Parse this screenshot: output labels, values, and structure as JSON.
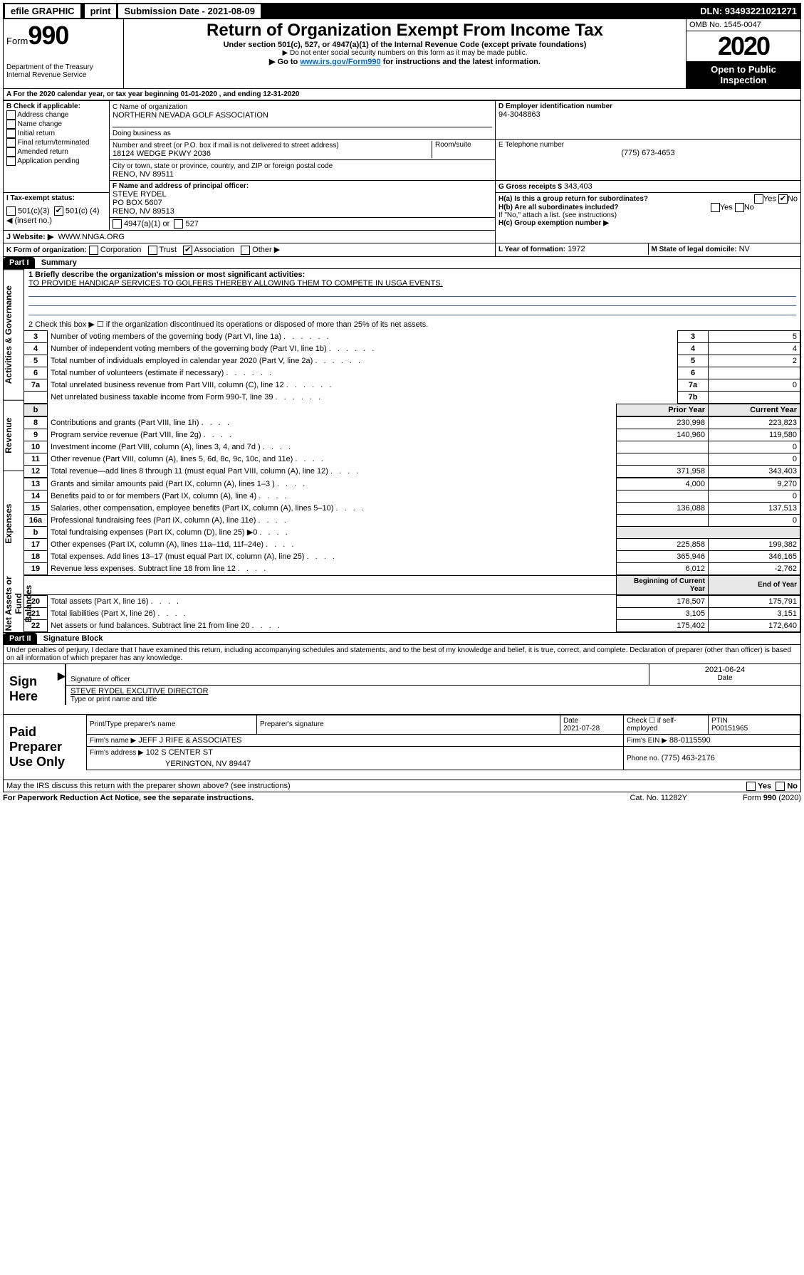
{
  "topbar": {
    "efile": "efile GRAPHIC",
    "print": "print",
    "sub_label": "Submission Date - 2021-08-09",
    "dln": "DLN: 93493221021271"
  },
  "header": {
    "form_label": "Form",
    "form_no": "990",
    "dept": "Department of the Treasury\nInternal Revenue Service",
    "title": "Return of Organization Exempt From Income Tax",
    "subtitle": "Under section 501(c), 527, or 4947(a)(1) of the Internal Revenue Code (except private foundations)",
    "note1": "▶ Do not enter social security numbers on this form as it may be made public.",
    "note2_pre": "▶ Go to ",
    "note2_link": "www.irs.gov/Form990",
    "note2_post": " for instructions and the latest information.",
    "omb": "OMB No. 1545-0047",
    "year": "2020",
    "open": "Open to Public\nInspection"
  },
  "line_a": {
    "text": "A For the 2020 calendar year, or tax year beginning 01-01-2020     , and ending 12-31-2020"
  },
  "box_b": {
    "label": "B Check if applicable:",
    "items": [
      "Address change",
      "Name change",
      "Initial return",
      "Final return/terminated",
      "Amended return",
      "Application pending"
    ]
  },
  "box_c": {
    "label": "C Name of organization",
    "name": "NORTHERN NEVADA GOLF ASSOCIATION",
    "dba_label": "Doing business as",
    "addr_label": "Number and street (or P.O. box if mail is not delivered to street address)",
    "room_label": "Room/suite",
    "addr": "18124 WEDGE PKWY 2036",
    "city_label": "City or town, state or province, country, and ZIP or foreign postal code",
    "city": "RENO, NV  89511"
  },
  "box_d": {
    "label": "D Employer identification number",
    "value": "94-3048863"
  },
  "box_e": {
    "label": "E Telephone number",
    "value": "(775) 673-4653"
  },
  "box_g": {
    "label": "G Gross receipts $",
    "value": "343,403"
  },
  "box_f": {
    "label": "F  Name and address of principal officer:",
    "l1": "STEVE RYDEL",
    "l2": "PO BOX 5607",
    "l3": "RENO, NV  89513"
  },
  "box_h": {
    "a": "H(a)  Is this a group return for subordinates?",
    "b": "H(b)  Are all subordinates included?",
    "b_note": "If \"No,\" attach a list. (see instructions)",
    "c": "H(c)  Group exemption number ▶",
    "yes": "Yes",
    "no": "No"
  },
  "box_i": {
    "label": "I  Tax-exempt status:",
    "o1": "501(c)(3)",
    "o2_pre": "501(c) (",
    "o2_val": "4",
    "o2_post": ") ◀ (insert no.)",
    "o3": "4947(a)(1) or",
    "o4": "527"
  },
  "box_j": {
    "label": "J  Website: ▶",
    "value": "WWW.NNGA.ORG"
  },
  "box_k": {
    "label": "K Form of organization:",
    "opts": [
      "Corporation",
      "Trust",
      "Association",
      "Other ▶"
    ],
    "checked_idx": 2
  },
  "box_l": {
    "label": "L Year of formation:",
    "value": "1972"
  },
  "box_m": {
    "label": "M State of legal domicile:",
    "value": "NV"
  },
  "part1": {
    "hdr": "Part I",
    "title": "Summary",
    "side_labels": [
      "Activities & Governance",
      "Revenue",
      "Expenses",
      "Net Assets or\nFund Balances"
    ],
    "q1_label": "1  Briefly describe the organization's mission or most significant activities:",
    "q1_text": "TO PROVIDE HANDICAP SERVICES TO GOLFERS THEREBY ALLOWING THEM TO COMPETE IN USGA EVENTS.",
    "q2": "2   Check this box ▶ ☐  if the organization discontinued its operations or disposed of more than 25% of its net assets.",
    "rows_simple": [
      {
        "n": "3",
        "t": "Number of voting members of the governing body (Part VI, line 1a)",
        "nc": "3",
        "v": "5"
      },
      {
        "n": "4",
        "t": "Number of independent voting members of the governing body (Part VI, line 1b)",
        "nc": "4",
        "v": "4"
      },
      {
        "n": "5",
        "t": "Total number of individuals employed in calendar year 2020 (Part V, line 2a)",
        "nc": "5",
        "v": "2"
      },
      {
        "n": "6",
        "t": "Total number of volunteers (estimate if necessary)",
        "nc": "6",
        "v": ""
      },
      {
        "n": "7a",
        "t": "Total unrelated business revenue from Part VIII, column (C), line 12",
        "nc": "7a",
        "v": "0"
      },
      {
        "n": "",
        "t": "Net unrelated business taxable income from Form 990-T, line 39",
        "nc": "7b",
        "v": ""
      }
    ],
    "col_hdr": {
      "b": "b",
      "prior": "Prior Year",
      "curr": "Current Year"
    },
    "rev_rows": [
      {
        "n": "8",
        "t": "Contributions and grants (Part VIII, line 1h)",
        "p": "230,998",
        "c": "223,823"
      },
      {
        "n": "9",
        "t": "Program service revenue (Part VIII, line 2g)",
        "p": "140,960",
        "c": "119,580"
      },
      {
        "n": "10",
        "t": "Investment income (Part VIII, column (A), lines 3, 4, and 7d )",
        "p": "",
        "c": "0"
      },
      {
        "n": "11",
        "t": "Other revenue (Part VIII, column (A), lines 5, 6d, 8c, 9c, 10c, and 11e)",
        "p": "",
        "c": "0"
      },
      {
        "n": "12",
        "t": "Total revenue—add lines 8 through 11 (must equal Part VIII, column (A), line 12)",
        "p": "371,958",
        "c": "343,403"
      }
    ],
    "exp_rows": [
      {
        "n": "13",
        "t": "Grants and similar amounts paid (Part IX, column (A), lines 1–3 )",
        "p": "4,000",
        "c": "9,270"
      },
      {
        "n": "14",
        "t": "Benefits paid to or for members (Part IX, column (A), line 4)",
        "p": "",
        "c": "0"
      },
      {
        "n": "15",
        "t": "Salaries, other compensation, employee benefits (Part IX, column (A), lines 5–10)",
        "p": "136,088",
        "c": "137,513"
      },
      {
        "n": "16a",
        "t": "Professional fundraising fees (Part IX, column (A), line 11e)",
        "p": "",
        "c": "0"
      },
      {
        "n": "b",
        "t": "Total fundraising expenses (Part IX, column (D), line 25) ▶0",
        "p": null,
        "c": null
      },
      {
        "n": "17",
        "t": "Other expenses (Part IX, column (A), lines 11a–11d, 11f–24e)",
        "p": "225,858",
        "c": "199,382"
      },
      {
        "n": "18",
        "t": "Total expenses. Add lines 13–17 (must equal Part IX, column (A), line 25)",
        "p": "365,946",
        "c": "346,165"
      },
      {
        "n": "19",
        "t": "Revenue less expenses. Subtract line 18 from line 12",
        "p": "6,012",
        "c": "-2,762"
      }
    ],
    "col_hdr2": {
      "prior": "Beginning of Current Year",
      "curr": "End of Year"
    },
    "na_rows": [
      {
        "n": "20",
        "t": "Total assets (Part X, line 16)",
        "p": "178,507",
        "c": "175,791"
      },
      {
        "n": "21",
        "t": "Total liabilities (Part X, line 26)",
        "p": "3,105",
        "c": "3,151"
      },
      {
        "n": "22",
        "t": "Net assets or fund balances. Subtract line 21 from line 20",
        "p": "175,402",
        "c": "172,640"
      }
    ]
  },
  "part2": {
    "hdr": "Part II",
    "title": "Signature Block",
    "decl": "Under penalties of perjury, I declare that I have examined this return, including accompanying schedules and statements, and to the best of my knowledge and belief, it is true, correct, and complete. Declaration of preparer (other than officer) is based on all information of which preparer has any knowledge.",
    "sign_here": "Sign\nHere",
    "date1": "2021-06-24",
    "sig_of": "Signature of officer",
    "date_lbl": "Date",
    "name_title": "STEVE RYDEL  EXCUTIVE DIRECTOR",
    "name_lbl": "Type or print name and title",
    "paid": "Paid\nPreparer\nUse Only",
    "pp_name_lbl": "Print/Type preparer's name",
    "pp_sig_lbl": "Preparer's signature",
    "pp_date_lbl": "Date",
    "pp_date": "2021-07-28",
    "pp_check": "Check ☐ if self-employed",
    "ptin_lbl": "PTIN",
    "ptin": "P00151965",
    "firm_name_lbl": "Firm's name    ▶",
    "firm_name": "JEFF J RIFE & ASSOCIATES",
    "firm_ein_lbl": "Firm's EIN ▶",
    "firm_ein": "88-0115590",
    "firm_addr_lbl": "Firm's address ▶",
    "firm_addr1": "102 S CENTER ST",
    "firm_addr2": "YERINGTON, NV  89447",
    "phone_lbl": "Phone no.",
    "phone": "(775) 463-2176",
    "discuss": "May the IRS discuss this return with the preparer shown above? (see instructions)",
    "yes": "Yes",
    "no": "No"
  },
  "footer": {
    "pra": "For Paperwork Reduction Act Notice, see the separate instructions.",
    "cat": "Cat. No. 11282Y",
    "form": "Form 990 (2020)"
  }
}
